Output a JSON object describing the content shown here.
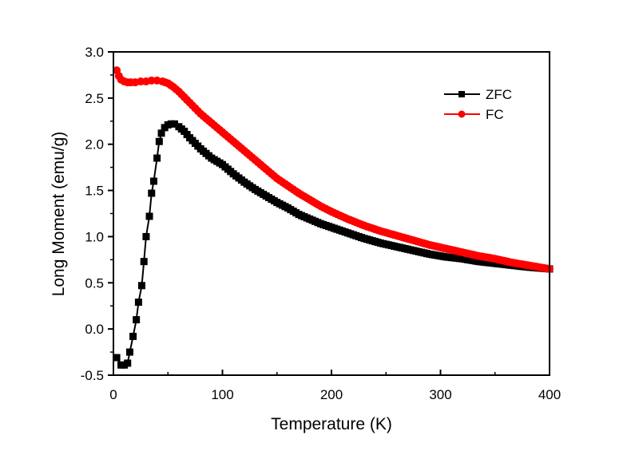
{
  "chart_data": {
    "type": "line",
    "title": "",
    "xlabel": "Temperature (K)",
    "ylabel": "Long Moment (emu/g)",
    "xlim": [
      0,
      400
    ],
    "ylim": [
      -0.5,
      3.0
    ],
    "xticks": [
      "0",
      "100",
      "200",
      "300",
      "400"
    ],
    "yticks": [
      "-0.5",
      "0.0",
      "0.5",
      "1.0",
      "1.5",
      "2.0",
      "2.5",
      "3.0"
    ],
    "xtick_values": [
      0,
      100,
      200,
      300,
      400
    ],
    "ytick_values": [
      -0.5,
      0.0,
      0.5,
      1.0,
      1.5,
      2.0,
      2.5,
      3.0
    ],
    "grid": false,
    "legend_position": "top-right",
    "series": [
      {
        "name": "ZFC",
        "color": "#000000",
        "marker": "square",
        "x": [
          3,
          7,
          10,
          13,
          15,
          18,
          21,
          23,
          26,
          28,
          30,
          33,
          35,
          37,
          40,
          42,
          44,
          47,
          50,
          53,
          56,
          60,
          65,
          70,
          75,
          80,
          90,
          100,
          110,
          120,
          130,
          140,
          150,
          160,
          170,
          180,
          190,
          200,
          215,
          230,
          245,
          260,
          275,
          290,
          305,
          320,
          335,
          350,
          365,
          380,
          400
        ],
        "y": [
          -0.31,
          -0.39,
          -0.39,
          -0.37,
          -0.25,
          -0.08,
          0.1,
          0.29,
          0.47,
          0.73,
          1.0,
          1.22,
          1.47,
          1.6,
          1.85,
          2.03,
          2.12,
          2.18,
          2.21,
          2.22,
          2.22,
          2.19,
          2.14,
          2.07,
          2.01,
          1.95,
          1.85,
          1.78,
          1.68,
          1.59,
          1.51,
          1.44,
          1.37,
          1.31,
          1.24,
          1.19,
          1.14,
          1.1,
          1.04,
          0.98,
          0.93,
          0.89,
          0.85,
          0.81,
          0.78,
          0.76,
          0.73,
          0.71,
          0.69,
          0.67,
          0.65
        ]
      },
      {
        "name": "FC",
        "color": "#ff0000",
        "marker": "circle",
        "x": [
          3,
          5,
          7,
          10,
          13,
          16,
          20,
          25,
          30,
          35,
          40,
          45,
          50,
          55,
          60,
          65,
          70,
          75,
          80,
          90,
          100,
          110,
          120,
          130,
          140,
          150,
          160,
          170,
          180,
          190,
          200,
          215,
          230,
          245,
          260,
          275,
          290,
          305,
          320,
          335,
          350,
          365,
          380,
          400
        ],
        "y": [
          2.8,
          2.74,
          2.7,
          2.68,
          2.67,
          2.67,
          2.67,
          2.68,
          2.68,
          2.69,
          2.69,
          2.68,
          2.66,
          2.62,
          2.57,
          2.51,
          2.45,
          2.39,
          2.33,
          2.23,
          2.13,
          2.03,
          1.93,
          1.83,
          1.73,
          1.63,
          1.55,
          1.47,
          1.4,
          1.33,
          1.27,
          1.19,
          1.12,
          1.06,
          1.01,
          0.96,
          0.91,
          0.87,
          0.83,
          0.79,
          0.76,
          0.72,
          0.69,
          0.65
        ]
      }
    ]
  }
}
